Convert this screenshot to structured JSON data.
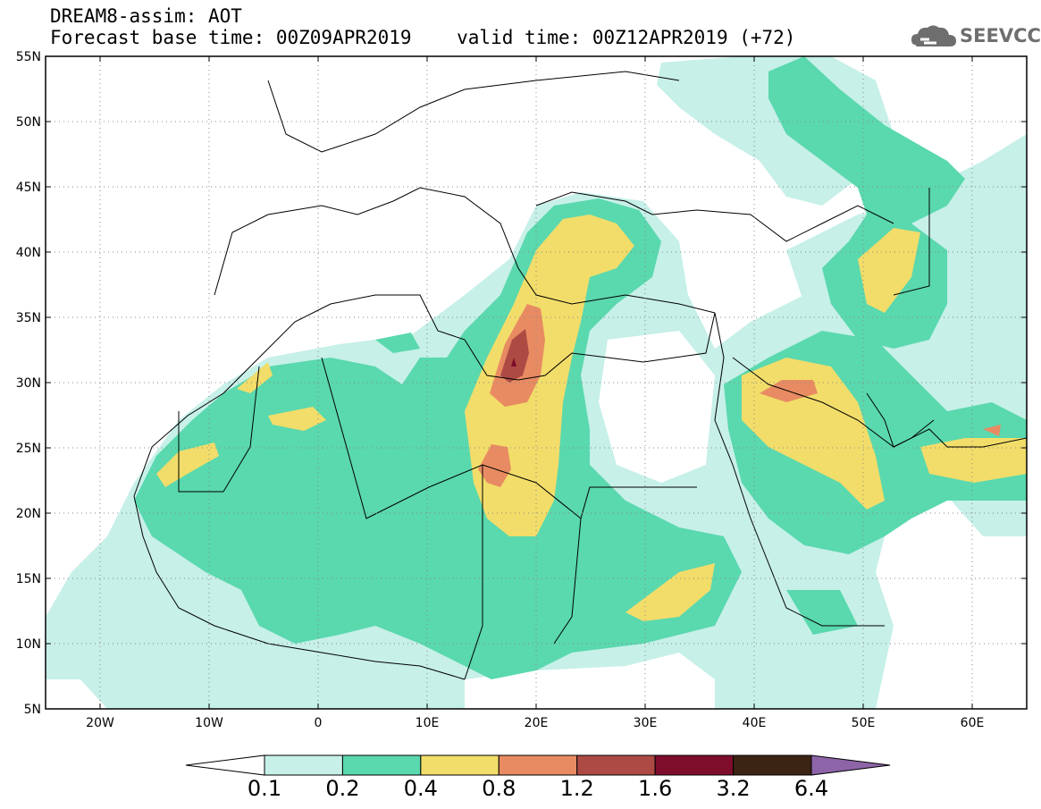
{
  "header": {
    "line1": "DREAM8-assim: AOT",
    "line2": "Forecast base time: 00Z09APR2019    valid time: 00Z12APR2019 (+72)"
  },
  "logo": {
    "text": "SEEVCCC",
    "icon": "cloud-icon"
  },
  "map": {
    "lon_range": [
      -25,
      65
    ],
    "lat_range": [
      5,
      55
    ],
    "lat_labels": [
      "55N",
      "50N",
      "45N",
      "40N",
      "35N",
      "30N",
      "25N",
      "20N",
      "15N",
      "10N",
      "5N"
    ],
    "lon_labels": [
      "20W",
      "10W",
      "0",
      "10E",
      "20E",
      "30E",
      "40E",
      "50E",
      "60E"
    ],
    "grid": "dotted"
  },
  "colorbar": {
    "labels": [
      "0.1",
      "0.2",
      "0.4",
      "0.8",
      "1.2",
      "1.6",
      "3.2",
      "6.4"
    ],
    "colors": [
      "#ffffff",
      "#c6f0e8",
      "#5ad8ae",
      "#f2dd6a",
      "#e88b62",
      "#ad4a44",
      "#7e0d2c",
      "#3b2414",
      "#8e64a8"
    ]
  }
}
